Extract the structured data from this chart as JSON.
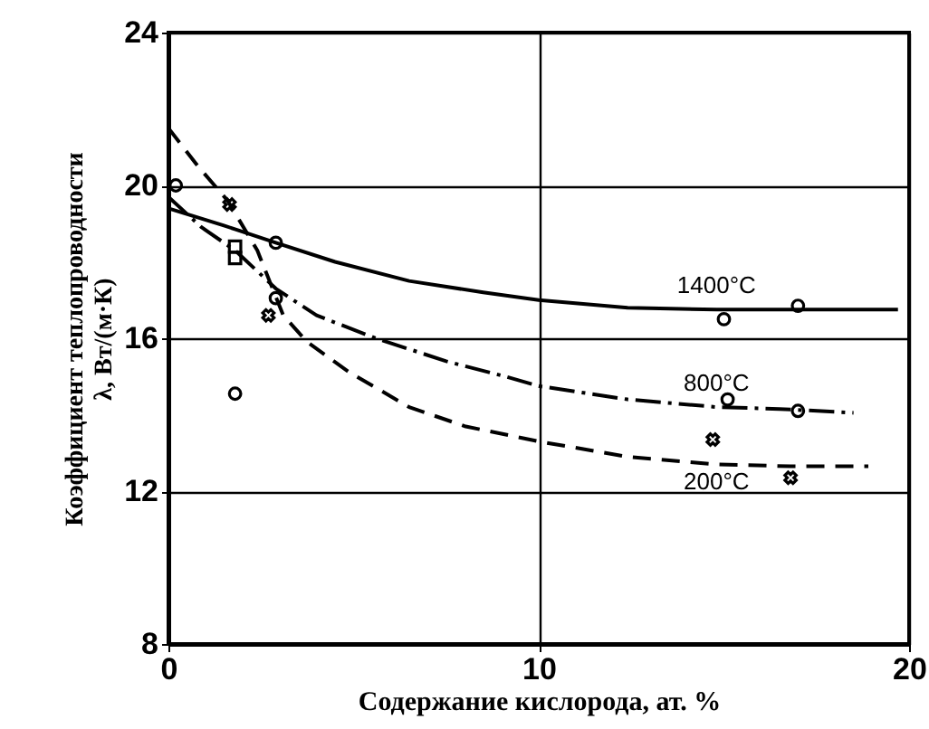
{
  "chart_data": {
    "type": "line",
    "xlabel": "Содержание кислорода, ат. %",
    "ylabel": "Коэффициент теплопроводности\nλ, Вт/(м·К)",
    "xlim": [
      0,
      20
    ],
    "xticks": [
      0,
      10,
      20
    ],
    "ylim": [
      8,
      24
    ],
    "yticks": [
      8,
      12,
      16,
      20,
      24
    ],
    "grid": true,
    "series": [
      {
        "name": "1400°C",
        "color": "#000000",
        "line_style": "solid",
        "x": [
          0,
          1.5,
          2.9,
          4.5,
          6.5,
          8.5,
          10,
          12.4,
          14.8,
          17,
          19.7
        ],
        "values": [
          19.4,
          18.95,
          18.5,
          18.0,
          17.5,
          17.2,
          17.0,
          16.8,
          16.75,
          16.75,
          16.75
        ]
      },
      {
        "name": "800°C",
        "color": "#000000",
        "line_style": "dashdot",
        "x": [
          0,
          0.9,
          1.8,
          2.9,
          4,
          5.6,
          7.5,
          9.1,
          10,
          12.4,
          14.8,
          16.5,
          18.5
        ],
        "values": [
          19.7,
          18.9,
          18.3,
          17.3,
          16.6,
          16.0,
          15.4,
          15.0,
          14.75,
          14.4,
          14.2,
          14.15,
          14.05
        ]
      },
      {
        "name": "200°C",
        "color": "#000000",
        "line_style": "dashed",
        "x": [
          0,
          0.8,
          1.6,
          2.4,
          3.1,
          3.75,
          4.9,
          6.5,
          8,
          10,
          12.4,
          14.8,
          16.8,
          18.9
        ],
        "values": [
          21.5,
          20.5,
          19.6,
          18.3,
          16.6,
          15.9,
          15.1,
          14.2,
          13.7,
          13.3,
          12.9,
          12.7,
          12.65,
          12.65
        ]
      },
      {
        "type": "scatter",
        "color": "#000000",
        "marker": "circle",
        "x": [
          2.9,
          15.0,
          17.0
        ],
        "values": [
          18.5,
          16.5,
          16.85
        ]
      },
      {
        "type": "scatter",
        "color": "#000000",
        "marker": "circle",
        "x": [
          0.2,
          2.9,
          15.1,
          17.0,
          1.8
        ],
        "values": [
          20.0,
          17.05,
          14.4,
          14.1,
          14.55
        ]
      },
      {
        "type": "scatter",
        "color": "#000000",
        "marker": "square",
        "x": [
          1.8,
          1.8
        ],
        "values": [
          18.4,
          18.1
        ]
      },
      {
        "type": "scatter",
        "color": "#000000",
        "marker": "cross",
        "x": [
          1.65,
          2.7,
          14.7,
          16.8
        ],
        "values": [
          19.5,
          16.6,
          13.35,
          12.35
        ]
      }
    ]
  }
}
